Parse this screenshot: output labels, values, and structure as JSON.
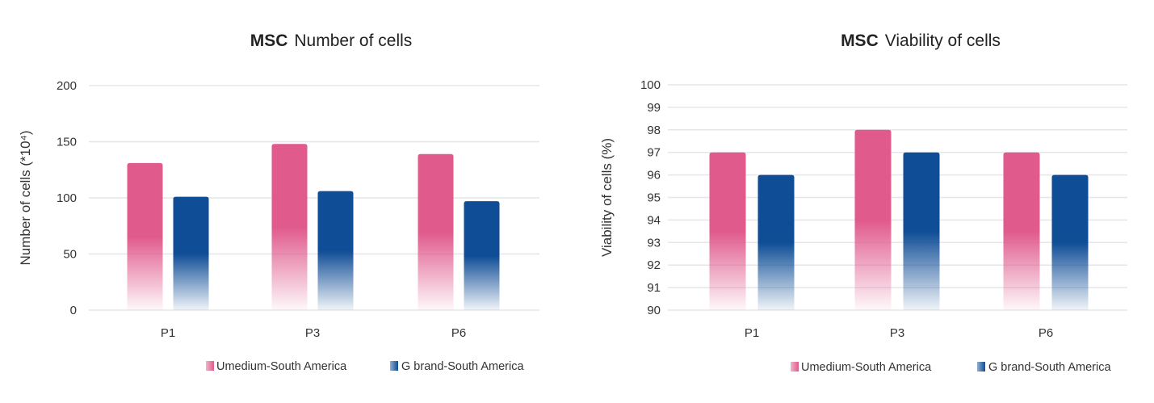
{
  "colors": {
    "umedium": "#e05a8c",
    "gbrand": "#0f4d96",
    "grid": "#e6e6ea",
    "axis_text": "#333333",
    "title_text": "#222222"
  },
  "chart_data": [
    {
      "type": "bar",
      "title_bold": "MSC",
      "title_rest": "Number of cells",
      "categories": [
        "P1",
        "P3",
        "P6"
      ],
      "ylabel": "Number of cells (*10⁴)",
      "xlabel": "",
      "ylim": [
        0,
        200
      ],
      "yticks": [
        0,
        50,
        100,
        150,
        200
      ],
      "ytick_labels": [
        "0",
        "50",
        "100",
        "150",
        "200"
      ],
      "grid": true,
      "legend_position": "bottom-right",
      "series": [
        {
          "name": "Umedium-South America",
          "color_key": "umedium",
          "values": [
            131,
            148,
            139
          ]
        },
        {
          "name": "G brand-South America",
          "color_key": "gbrand",
          "values": [
            101,
            106,
            97
          ]
        }
      ]
    },
    {
      "type": "bar",
      "title_bold": "MSC",
      "title_rest": "Viability of cells",
      "categories": [
        "P1",
        "P3",
        "P6"
      ],
      "ylabel": "Viability of cells (%)",
      "xlabel": "",
      "ylim": [
        90,
        100
      ],
      "yticks": [
        90,
        91,
        92,
        93,
        94,
        95,
        96,
        97,
        98,
        99,
        100
      ],
      "ytick_labels": [
        "90",
        "91",
        "92",
        "93",
        "94",
        "95",
        "96",
        "97",
        "98",
        "99",
        "100"
      ],
      "grid": true,
      "legend_position": "bottom-right",
      "series": [
        {
          "name": "Umedium-South America",
          "color_key": "umedium",
          "values": [
            97,
            98,
            97
          ]
        },
        {
          "name": "G brand-South America",
          "color_key": "gbrand",
          "values": [
            96,
            97,
            96
          ]
        }
      ]
    }
  ]
}
